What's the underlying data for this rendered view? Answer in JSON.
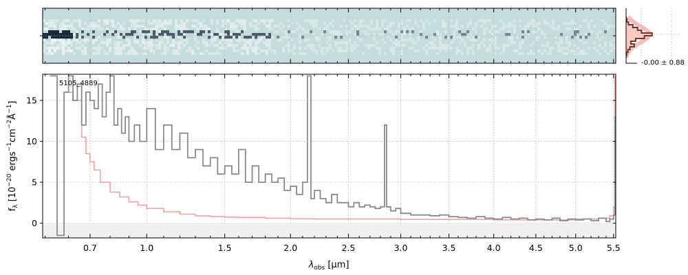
{
  "chart_data": {
    "type": "line",
    "annotation": "5105_4889",
    "xlabel_symbol": "λ",
    "xlabel_sub": "obs",
    "xlabel_unit": "[μm]",
    "ylabel": "f",
    "ylabel_sub": "λ",
    "ylabel_unit_prefix": "[10",
    "ylabel_exp1": "−20",
    "ylabel_unit_mid1": " ergs",
    "ylabel_exp2": "−1",
    "ylabel_unit_mid2": "cm",
    "ylabel_exp3": "−2",
    "ylabel_unit_mid3": "Å",
    "ylabel_exp4": "−1",
    "ylabel_unit_suffix": "]",
    "x_scale": "power-law (approximately λ^0.5 spacing)",
    "xlim": [
      0.49,
      5.53
    ],
    "ylim": [
      -1.8,
      18.2
    ],
    "x_ticks": [
      0.7,
      1.0,
      1.5,
      2.0,
      2.5,
      3.0,
      3.5,
      4.0,
      4.5,
      5.0,
      5.5
    ],
    "x_tick_labels": [
      "0.7",
      "1.0",
      "1.5",
      "2.0",
      "2.5",
      "3.0",
      "3.5",
      "4.0",
      "4.5",
      "5.0",
      "5.5"
    ],
    "x_minor_ticks": [
      0.5,
      0.6,
      0.8,
      0.9,
      1.1,
      1.2,
      1.3,
      1.4,
      1.6,
      1.7,
      1.8,
      1.9,
      2.1,
      2.2,
      2.3,
      2.4,
      2.6,
      2.7,
      2.8,
      2.9,
      3.1,
      3.2,
      3.3,
      3.4,
      3.6,
      3.7,
      3.8,
      3.9,
      4.1,
      4.2,
      4.3,
      4.4,
      4.6,
      4.7,
      4.8,
      4.9,
      5.1,
      5.2,
      5.3,
      5.4
    ],
    "y_ticks": [
      0,
      5,
      10,
      15
    ],
    "y_tick_labels": [
      "0",
      "5",
      "10",
      "15"
    ],
    "grid": true,
    "series": [
      {
        "role": "flux",
        "color": "#8a8a8a",
        "style": "steps",
        "x": [
          0.52,
          0.55,
          0.58,
          0.6,
          0.62,
          0.64,
          0.66,
          0.68,
          0.7,
          0.72,
          0.74,
          0.76,
          0.78,
          0.8,
          0.82,
          0.84,
          0.86,
          0.88,
          0.9,
          0.93,
          0.96,
          1.0,
          1.05,
          1.1,
          1.15,
          1.2,
          1.25,
          1.3,
          1.35,
          1.4,
          1.45,
          1.5,
          1.55,
          1.6,
          1.65,
          1.7,
          1.75,
          1.8,
          1.85,
          1.9,
          1.95,
          2.0,
          2.05,
          2.1,
          2.14,
          2.17,
          2.2,
          2.25,
          2.3,
          2.35,
          2.4,
          2.45,
          2.5,
          2.55,
          2.6,
          2.65,
          2.7,
          2.75,
          2.8,
          2.84,
          2.86,
          2.9,
          2.95,
          3.0,
          3.1,
          3.2,
          3.3,
          3.4,
          3.5,
          3.6,
          3.7,
          3.8,
          3.9,
          4.0,
          4.1,
          4.2,
          4.3,
          4.4,
          4.5,
          4.6,
          4.7,
          4.8,
          4.9,
          5.0,
          5.1,
          5.2,
          5.3,
          5.4,
          5.45,
          5.5,
          5.52
        ],
        "y": [
          18,
          -1.5,
          16,
          18,
          15,
          17,
          12,
          16,
          15,
          14,
          17,
          13,
          16,
          18,
          12,
          14,
          11,
          13,
          10,
          12,
          10,
          14,
          9,
          12,
          9,
          11,
          8,
          9,
          7,
          8,
          6,
          7,
          6,
          9,
          5,
          7,
          5,
          6,
          5,
          5.5,
          4,
          4.5,
          3.5,
          5,
          18,
          3,
          4,
          3,
          2.5,
          3.5,
          2.5,
          2.5,
          2.0,
          2.5,
          2.0,
          2.2,
          2.0,
          1.8,
          2.0,
          12,
          2,
          1.5,
          1.8,
          1.2,
          1.0,
          1.0,
          0.9,
          1.0,
          0.8,
          0.7,
          0.6,
          0.8,
          0.6,
          0.5,
          0.7,
          0.5,
          0.6,
          0.4,
          0.5,
          0.4,
          0.6,
          0.3,
          0.5,
          0.4,
          0.5,
          0.3,
          0.6,
          0.2,
          0.5,
          1.0,
          13
        ]
      },
      {
        "role": "model",
        "color": "#f5a0a0",
        "style": "steps",
        "x": [
          0.6,
          0.62,
          0.64,
          0.66,
          0.68,
          0.7,
          0.72,
          0.75,
          0.8,
          0.85,
          0.9,
          0.95,
          1.0,
          1.1,
          1.2,
          1.3,
          1.4,
          1.5,
          1.6,
          1.8,
          2.0,
          2.2,
          2.5,
          3.0,
          3.5,
          4.0,
          4.5,
          5.0,
          5.3,
          5.4,
          5.45,
          5.5,
          5.52
        ],
        "y": [
          16,
          15,
          15,
          10.5,
          8.5,
          7.5,
          6.5,
          5,
          3.8,
          3.2,
          2.6,
          2.2,
          1.8,
          1.4,
          1.1,
          0.9,
          0.8,
          0.75,
          0.7,
          0.6,
          0.55,
          0.5,
          0.5,
          0.45,
          0.45,
          0.4,
          0.4,
          0.5,
          0.6,
          0.6,
          0.9,
          2,
          18
        ]
      }
    ]
  },
  "spectrum2d": {
    "yticks": [
      0
    ],
    "colors": {
      "background": "#c5dcdc",
      "dark": "#1a2a3a",
      "light": "#ffffff"
    }
  },
  "histogram": {
    "label": "-0.00 ± 0.88",
    "outline_color": "#6b3a2a",
    "fill_color": "#f8c9c0",
    "gaussian_color": "#f5a0a0"
  }
}
